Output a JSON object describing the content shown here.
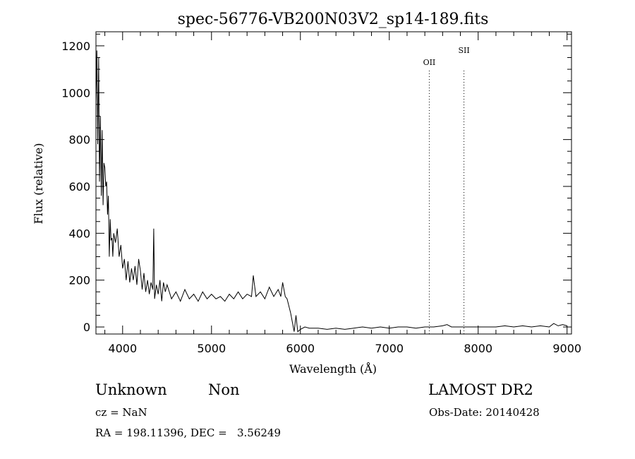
{
  "chart_data": {
    "type": "line",
    "title": "spec-56776-VB200N03V2_sp14-189.fits",
    "xlabel": "Wavelength (Å)",
    "ylabel": "Flux (relative)",
    "xlim": [
      3700,
      9050
    ],
    "ylim": [
      -30,
      1260
    ],
    "x_ticks": [
      4000,
      5000,
      6000,
      7000,
      8000,
      9000
    ],
    "y_ticks": [
      0,
      200,
      400,
      600,
      800,
      1000,
      1200
    ],
    "x_tick_labels": [
      "4000",
      "5000",
      "6000",
      "7000",
      "8000",
      "9000"
    ],
    "y_tick_labels": [
      "0",
      "200",
      "400",
      "600",
      "800",
      "1000",
      "1200"
    ],
    "grid": false,
    "series": [
      {
        "x": [
          3700,
          3710,
          3720,
          3730,
          3740,
          3750,
          3760,
          3770,
          3780,
          3790,
          3800,
          3810,
          3820,
          3830,
          3840,
          3850,
          3860,
          3870,
          3880,
          3890,
          3900,
          3920,
          3940,
          3960,
          3980,
          4000,
          4020,
          4040,
          4060,
          4080,
          4100,
          4120,
          4140,
          4160,
          4180,
          4200,
          4220,
          4240,
          4260,
          4280,
          4300,
          4320,
          4340,
          4350,
          4360,
          4380,
          4400,
          4420,
          4440,
          4460,
          4480,
          4500,
          4550,
          4600,
          4650,
          4700,
          4750,
          4800,
          4850,
          4900,
          4950,
          5000,
          5050,
          5100,
          5150,
          5200,
          5250,
          5300,
          5350,
          5400,
          5450,
          5470,
          5500,
          5550,
          5600,
          5650,
          5700,
          5750,
          5780,
          5800,
          5830,
          5850,
          5870,
          5890,
          5910,
          5930,
          5950,
          5970,
          6000,
          6050,
          6100,
          6200,
          6300,
          6400,
          6500,
          6600,
          6700,
          6800,
          6900,
          7000,
          7100,
          7200,
          7300,
          7400,
          7500,
          7600,
          7650,
          7700,
          7800,
          7900,
          8000,
          8100,
          8200,
          8300,
          8400,
          8500,
          8600,
          8700,
          8800,
          8850,
          8900,
          8950,
          9000
        ],
        "y": [
          960,
          1180,
          780,
          1150,
          620,
          900,
          560,
          840,
          520,
          700,
          680,
          600,
          620,
          480,
          560,
          300,
          460,
          370,
          380,
          300,
          400,
          360,
          420,
          300,
          350,
          250,
          290,
          200,
          280,
          190,
          250,
          200,
          260,
          180,
          290,
          240,
          160,
          230,
          150,
          200,
          140,
          190,
          160,
          420,
          120,
          180,
          140,
          200,
          110,
          190,
          150,
          180,
          120,
          150,
          110,
          160,
          120,
          140,
          110,
          150,
          120,
          140,
          120,
          130,
          110,
          140,
          120,
          150,
          120,
          140,
          130,
          220,
          130,
          150,
          120,
          170,
          130,
          160,
          130,
          190,
          130,
          120,
          90,
          60,
          20,
          -20,
          50,
          -20,
          -10,
          0,
          -5,
          -5,
          -10,
          -5,
          -10,
          -5,
          0,
          -5,
          0,
          -5,
          0,
          0,
          -5,
          0,
          0,
          5,
          10,
          0,
          0,
          0,
          0,
          0,
          0,
          5,
          0,
          5,
          0,
          5,
          0,
          15,
          5,
          10,
          5
        ]
      }
    ],
    "annotations": [
      {
        "label": "OII",
        "x": 7450
      },
      {
        "label": "SII",
        "x": 7840
      }
    ]
  },
  "footer": {
    "object_class": "Unknown",
    "subclass": "Non",
    "survey": "LAMOST DR2",
    "redshift": "cz = NaN",
    "obs_date": "Obs-Date: 20140428",
    "coords": "RA = 198.11396, DEC =   3.56249"
  }
}
